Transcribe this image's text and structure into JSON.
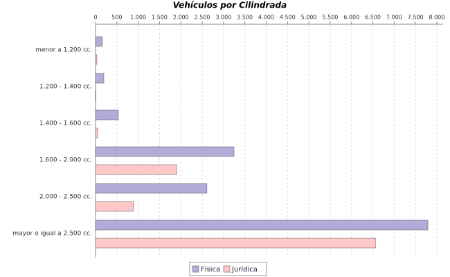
{
  "chart_data": {
    "type": "hbar",
    "title": "Vehículos por Cilindrada",
    "categories": [
      "menor a 1.200 cc.",
      "1.200 - 1.400 cc.",
      "1.400 - 1.600 cc.",
      "1.600 - 2.000 cc.",
      "2.000 - 2.500 cc.",
      "mayor o igual a 2.500 cc."
    ],
    "series": [
      {
        "name": "Física",
        "color": "#b4acd8",
        "values": [
          160,
          195,
          535,
          3245,
          2610,
          7790
        ]
      },
      {
        "name": "Jurídica",
        "color": "#ffc8c8",
        "values": [
          30,
          10,
          50,
          1900,
          890,
          6560
        ]
      }
    ],
    "xlim": [
      0,
      8000
    ],
    "xticks": [
      0,
      500,
      {
        "value": 1000,
        "label": "1.000"
      },
      {
        "value": 1500,
        "label": "1.500"
      },
      {
        "value": 2000,
        "label": "2.000"
      },
      {
        "value": 2500,
        "label": "2.500"
      },
      {
        "value": 3000,
        "label": "3.000"
      },
      {
        "value": 3500,
        "label": "3.500"
      },
      {
        "value": 4000,
        "label": "4.000"
      },
      {
        "value": 4500,
        "label": "4.500"
      },
      {
        "value": 5000,
        "label": "5.000"
      },
      {
        "value": 5500,
        "label": "5.500"
      },
      {
        "value": 6000,
        "label": "6.000"
      },
      {
        "value": 6500,
        "label": "6.500"
      },
      {
        "value": 7000,
        "label": "7.000"
      },
      {
        "value": 7500,
        "label": "7.500"
      },
      {
        "value": 8000,
        "label": "8.000"
      }
    ],
    "grid": true,
    "legend": "bottom"
  }
}
